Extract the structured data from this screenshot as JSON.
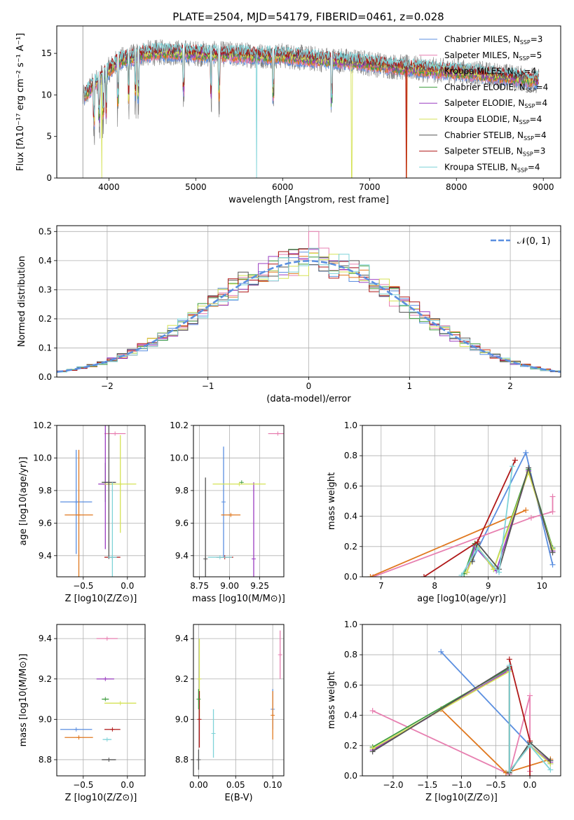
{
  "title": "PLATE=2504, MJD=54179, FIBERID=0461, z=0.028",
  "colors": {
    "chabrier_miles": "#5b8fe0",
    "salpeter_miles": "#e77fb0",
    "kroupa_miles": "#e0781f",
    "chabrier_elodie": "#3f9d3f",
    "salpeter_elodie": "#9a3cc0",
    "kroupa_elodie": "#d5e256",
    "chabrier_stelib": "#555555",
    "salpeter_stelib": "#b01818",
    "kroupa_stelib": "#7fd3d8"
  },
  "chart_data": [
    {
      "id": "spectrum",
      "type": "line",
      "xlabel": "wavelength [Angstrom, rest frame]",
      "ylabel": "Flux [fλ10⁻¹⁷ erg cm⁻² s⁻¹ A⁻¹]",
      "xlim": [
        3400,
        9200
      ],
      "ylim": [
        0,
        18.3
      ],
      "xticks": [
        "4000",
        "5000",
        "6000",
        "7000",
        "8000",
        "9000"
      ],
      "yticks": [
        "0",
        "5",
        "10",
        "15"
      ],
      "legend": [
        "Chabrier MILES, N_SSP=3",
        "Salpeter MILES, N_SSP=5",
        "Kroupa MILES, N_SSP=4",
        "Chabrier ELODIE, N_SSP=4",
        "Salpeter ELODIE, N_SSP=4",
        "Kroupa ELODIE, N_SSP=4",
        "Chabrier STELIB, N_SSP=4",
        "Salpeter STELIB, N_SSP=3",
        "Kroupa STELIB, N_SSP=4"
      ],
      "legend_position": "top-right",
      "continuum": {
        "x": [
          3700,
          3800,
          3900,
          4000,
          4100,
          4200,
          4300,
          4400,
          4600,
          4800,
          5000,
          5200,
          5400,
          5600,
          5800,
          6000,
          6200,
          6400,
          6600,
          6800,
          7000,
          7200,
          7400,
          7600,
          7800,
          8000,
          8200,
          8400,
          8600,
          8800,
          8950
        ],
        "y": [
          9.5,
          11.0,
          12.0,
          13.0,
          14.0,
          14.4,
          14.6,
          15.0,
          15.1,
          15.1,
          15.0,
          14.9,
          14.9,
          14.8,
          14.7,
          14.7,
          14.5,
          14.3,
          14.2,
          14.0,
          13.8,
          13.5,
          13.3,
          13.1,
          12.9,
          12.8,
          12.6,
          12.4,
          12.2,
          11.9,
          11.7
        ]
      }
    },
    {
      "id": "residuals",
      "type": "line",
      "xlabel": "(data-model)/error",
      "ylabel": "Normed distribution",
      "xlim": [
        -2.5,
        2.5
      ],
      "ylim": [
        0,
        0.52
      ],
      "xticks": [
        -2,
        -1,
        0,
        1,
        2
      ],
      "yticks": [
        "0.0",
        "0.1",
        "0.2",
        "0.3",
        "0.4",
        "0.5"
      ],
      "legend": [
        "𝒩(0, 1)"
      ],
      "legend_position": "top-right",
      "grid": true
    },
    {
      "id": "age_vs_Z",
      "type": "scatter",
      "xlabel": "Z [log10(Z/Z⊙)]",
      "ylabel": "age  [log10(age/yr)]",
      "xlim": [
        -0.8,
        0.2
      ],
      "ylim": [
        9.27,
        10.2
      ],
      "xticks": [
        "−0.5",
        "0.0"
      ],
      "yticks": [
        "9.4",
        "9.6",
        "9.8",
        "10.0",
        "10.2"
      ],
      "grid": true,
      "points": [
        {
          "c": "chabrier_miles",
          "x": -0.58,
          "xe": 0.18,
          "y": 9.73,
          "ye": 0.32
        },
        {
          "c": "salpeter_miles",
          "x": -0.14,
          "xe": 0.12,
          "y": 10.15,
          "ye": 0.0
        },
        {
          "c": "kroupa_miles",
          "x": -0.55,
          "xe": 0.16,
          "y": 9.65,
          "ye": 0.4
        },
        {
          "c": "chabrier_elodie",
          "x": -0.25,
          "xe": 0.04,
          "y": 9.85,
          "ye": 0.12
        },
        {
          "c": "salpeter_elodie",
          "x": -0.25,
          "xe": 0.08,
          "y": 9.84,
          "ye": 0.4
        },
        {
          "c": "kroupa_elodie",
          "x": -0.08,
          "xe": 0.18,
          "y": 9.84,
          "ye": 0.3
        },
        {
          "c": "chabrier_stelib",
          "x": -0.21,
          "xe": 0.08,
          "y": 9.85,
          "ye": 0.47
        },
        {
          "c": "salpeter_stelib",
          "x": -0.17,
          "xe": 0.09,
          "y": 9.39,
          "ye": 0.0
        },
        {
          "c": "kroupa_stelib",
          "x": -0.17,
          "xe": 0.05,
          "y": 9.39,
          "ye": 0.46
        }
      ]
    },
    {
      "id": "age_vs_mass",
      "type": "scatter",
      "xlabel": "mass [log10(M/M⊙)]",
      "ylabel": "",
      "xlim": [
        8.7,
        9.45
      ],
      "ylim": [
        9.27,
        10.2
      ],
      "xticks": [
        "8.75",
        "9.00",
        "9.25"
      ],
      "yticks": [
        "9.4",
        "9.6",
        "9.8",
        "10.0",
        "10.2"
      ],
      "grid": true,
      "points": [
        {
          "c": "chabrier_miles",
          "x": 8.95,
          "xe": 0.0,
          "y": 9.73,
          "ye": 0.34
        },
        {
          "c": "salpeter_miles",
          "x": 9.4,
          "xe": 0.08,
          "y": 10.15,
          "ye": 0.0
        },
        {
          "c": "kroupa_miles",
          "x": 9.01,
          "xe": 0.08,
          "y": 9.65,
          "ye": 0.0
        },
        {
          "c": "chabrier_elodie",
          "x": 9.1,
          "xe": 0.0,
          "y": 9.85,
          "ye": 0.0
        },
        {
          "c": "salpeter_elodie",
          "x": 9.2,
          "xe": 0.0,
          "y": 9.38,
          "ye": 0.47
        },
        {
          "c": "kroupa_elodie",
          "x": 9.08,
          "xe": 0.22,
          "y": 9.84,
          "ye": 0.0
        },
        {
          "c": "chabrier_stelib",
          "x": 8.8,
          "xe": 0.0,
          "y": 9.38,
          "ye": 0.5
        },
        {
          "c": "salpeter_stelib",
          "x": 8.96,
          "xe": 0.07,
          "y": 9.39,
          "ye": 0.0
        },
        {
          "c": "kroupa_stelib",
          "x": 8.92,
          "xe": 0.1,
          "y": 9.39,
          "ye": 0.0
        }
      ]
    },
    {
      "id": "weight_vs_age",
      "type": "line",
      "xlabel": "age  [log10(age/yr)]",
      "ylabel": "mass weight",
      "xlim": [
        6.65,
        10.35
      ],
      "ylim": [
        0,
        1.0
      ],
      "xticks": [
        "7",
        "8",
        "9",
        "10"
      ],
      "yticks": [
        "0.0",
        "0.2",
        "0.4",
        "0.6",
        "0.8",
        "1.0"
      ],
      "grid": true,
      "series": [
        {
          "c": "chabrier_miles",
          "x": [
            8.7,
            9.7,
            10.2
          ],
          "y": [
            0.11,
            0.82,
            0.08
          ]
        },
        {
          "c": "salpeter_miles",
          "x": [
            6.85,
            9.8,
            10.2,
            10.2
          ],
          "y": [
            0.0,
            0.39,
            0.43,
            0.53
          ]
        },
        {
          "c": "kroupa_miles",
          "x": [
            6.8,
            9.7
          ],
          "y": [
            0.0,
            0.44
          ]
        },
        {
          "c": "chabrier_elodie",
          "x": [
            8.55,
            8.75,
            9.1,
            9.75,
            10.2
          ],
          "y": [
            0.02,
            0.22,
            0.05,
            0.71,
            0.19
          ]
        },
        {
          "c": "salpeter_elodie",
          "x": [
            8.6,
            8.75,
            9.15,
            9.75,
            10.2
          ],
          "y": [
            0.03,
            0.2,
            0.04,
            0.7,
            0.17
          ]
        },
        {
          "c": "kroupa_elodie",
          "x": [
            8.6,
            8.8,
            9.1,
            9.75,
            10.2
          ],
          "y": [
            0.03,
            0.2,
            0.05,
            0.69,
            0.18
          ]
        },
        {
          "c": "chabrier_stelib",
          "x": [
            8.7,
            8.8,
            9.2,
            9.75,
            10.2
          ],
          "y": [
            0.1,
            0.22,
            0.05,
            0.72,
            0.16
          ]
        },
        {
          "c": "salpeter_stelib",
          "x": [
            7.8,
            8.8,
            9.5
          ],
          "y": [
            0.0,
            0.23,
            0.77
          ]
        },
        {
          "c": "kroupa_stelib",
          "x": [
            8.5,
            8.8,
            9.2,
            9.45
          ],
          "y": [
            0.01,
            0.19,
            0.03,
            0.73
          ]
        }
      ]
    },
    {
      "id": "mass_vs_Z",
      "type": "scatter",
      "xlabel": "Z [log10(Z/Z⊙)]",
      "ylabel": "mass [log10(M/M⊙)]",
      "xlim": [
        -0.8,
        0.2
      ],
      "ylim": [
        8.72,
        9.47
      ],
      "xticks": [
        "−0.5",
        "0.0"
      ],
      "yticks": [
        "8.8",
        "9.0",
        "9.2",
        "9.4"
      ],
      "grid": true,
      "points": [
        {
          "c": "chabrier_miles",
          "x": -0.58,
          "xe": 0.18,
          "y": 8.95,
          "ye": 0.0
        },
        {
          "c": "salpeter_miles",
          "x": -0.23,
          "xe": 0.12,
          "y": 9.4,
          "ye": 0.0
        },
        {
          "c": "kroupa_miles",
          "x": -0.55,
          "xe": 0.16,
          "y": 8.91,
          "ye": 0.0
        },
        {
          "c": "chabrier_elodie",
          "x": -0.25,
          "xe": 0.04,
          "y": 9.1,
          "ye": 0.0
        },
        {
          "c": "salpeter_elodie",
          "x": -0.25,
          "xe": 0.1,
          "y": 9.2,
          "ye": 0.0
        },
        {
          "c": "kroupa_elodie",
          "x": -0.08,
          "xe": 0.18,
          "y": 9.08,
          "ye": 0.0
        },
        {
          "c": "chabrier_stelib",
          "x": -0.21,
          "xe": 0.08,
          "y": 8.8,
          "ye": 0.0
        },
        {
          "c": "salpeter_stelib",
          "x": -0.17,
          "xe": 0.09,
          "y": 8.95,
          "ye": 0.0
        },
        {
          "c": "kroupa_stelib",
          "x": -0.23,
          "xe": 0.05,
          "y": 8.9,
          "ye": 0.0
        }
      ]
    },
    {
      "id": "mass_vs_EBV",
      "type": "scatter",
      "xlabel": "E(B-V)",
      "ylabel": "",
      "xlim": [
        -0.007,
        0.115
      ],
      "ylim": [
        8.72,
        9.47
      ],
      "xticks": [
        "0.00",
        "0.05",
        "0.10"
      ],
      "yticks": [
        "8.8",
        "9.0",
        "9.2",
        "9.4"
      ],
      "grid": true,
      "points": [
        {
          "c": "chabrier_miles",
          "x": 0.1,
          "xe": 0.0,
          "y": 9.05,
          "ye": 0.1
        },
        {
          "c": "salpeter_miles",
          "x": 0.11,
          "xe": 0.0,
          "y": 9.32,
          "ye": 0.12
        },
        {
          "c": "kroupa_miles",
          "x": 0.1,
          "xe": 0.0,
          "y": 9.02,
          "ye": 0.12
        },
        {
          "c": "kroupa_elodie",
          "x": 0.001,
          "xe": 0.0,
          "y": 9.2,
          "ye": 0.2
        },
        {
          "c": "salpeter_stelib",
          "x": 0.001,
          "xe": 0.0,
          "y": 9.0,
          "ye": 0.14
        },
        {
          "c": "kroupa_stelib",
          "x": 0.02,
          "xe": 0.0,
          "y": 8.93,
          "ye": 0.12
        },
        {
          "c": "chabrier_elodie",
          "x": 0.0,
          "xe": 0.0,
          "y": 9.1,
          "ye": 0.05
        },
        {
          "c": "chabrier_stelib",
          "x": 0.0,
          "xe": 0.0,
          "y": 8.8,
          "ye": 0.05
        }
      ]
    },
    {
      "id": "weight_vs_Z",
      "type": "line",
      "xlabel": "Z [log10(Z/Z⊙)]",
      "ylabel": "mass weight",
      "xlim": [
        -2.45,
        0.45
      ],
      "ylim": [
        0,
        1.0
      ],
      "xticks": [
        "−2.0",
        "−1.5",
        "−1.0",
        "−0.5",
        "0.0"
      ],
      "yticks": [
        "0.0",
        "0.2",
        "0.4",
        "0.6",
        "0.8",
        "1.0"
      ],
      "grid": true,
      "series": [
        {
          "c": "chabrier_miles",
          "x": [
            -1.3,
            0.0,
            0.3
          ],
          "y": [
            0.82,
            0.2,
            0.08
          ]
        },
        {
          "c": "salpeter_miles",
          "x": [
            -2.3,
            -0.3,
            0.0,
            0.0
          ],
          "y": [
            0.43,
            0.01,
            0.53,
            0.03
          ]
        },
        {
          "c": "kroupa_miles",
          "x": [
            -1.3,
            -0.35,
            0.3
          ],
          "y": [
            0.44,
            0.02,
            0.11
          ]
        },
        {
          "c": "chabrier_elodie",
          "x": [
            -2.3,
            -0.3,
            -0.3,
            0.0,
            0.3
          ],
          "y": [
            0.19,
            0.71,
            0.02,
            0.22,
            0.1
          ]
        },
        {
          "c": "salpeter_elodie",
          "x": [
            -2.3,
            -0.3,
            -0.3,
            0.0,
            0.3
          ],
          "y": [
            0.17,
            0.7,
            0.03,
            0.2,
            0.09
          ]
        },
        {
          "c": "kroupa_elodie",
          "x": [
            -2.3,
            -0.3,
            -0.3,
            0.0,
            0.3
          ],
          "y": [
            0.18,
            0.69,
            0.03,
            0.2,
            0.08
          ]
        },
        {
          "c": "chabrier_stelib",
          "x": [
            -2.3,
            -0.3,
            -0.3,
            0.0,
            0.3
          ],
          "y": [
            0.16,
            0.72,
            0.02,
            0.22,
            0.1
          ]
        },
        {
          "c": "salpeter_stelib",
          "x": [
            -0.3,
            0.0,
            0.0
          ],
          "y": [
            0.77,
            0.23,
            0.0
          ]
        },
        {
          "c": "kroupa_stelib",
          "x": [
            -0.3,
            -0.3,
            0.0,
            0.3
          ],
          "y": [
            0.73,
            0.03,
            0.2,
            0.04
          ]
        }
      ]
    }
  ]
}
